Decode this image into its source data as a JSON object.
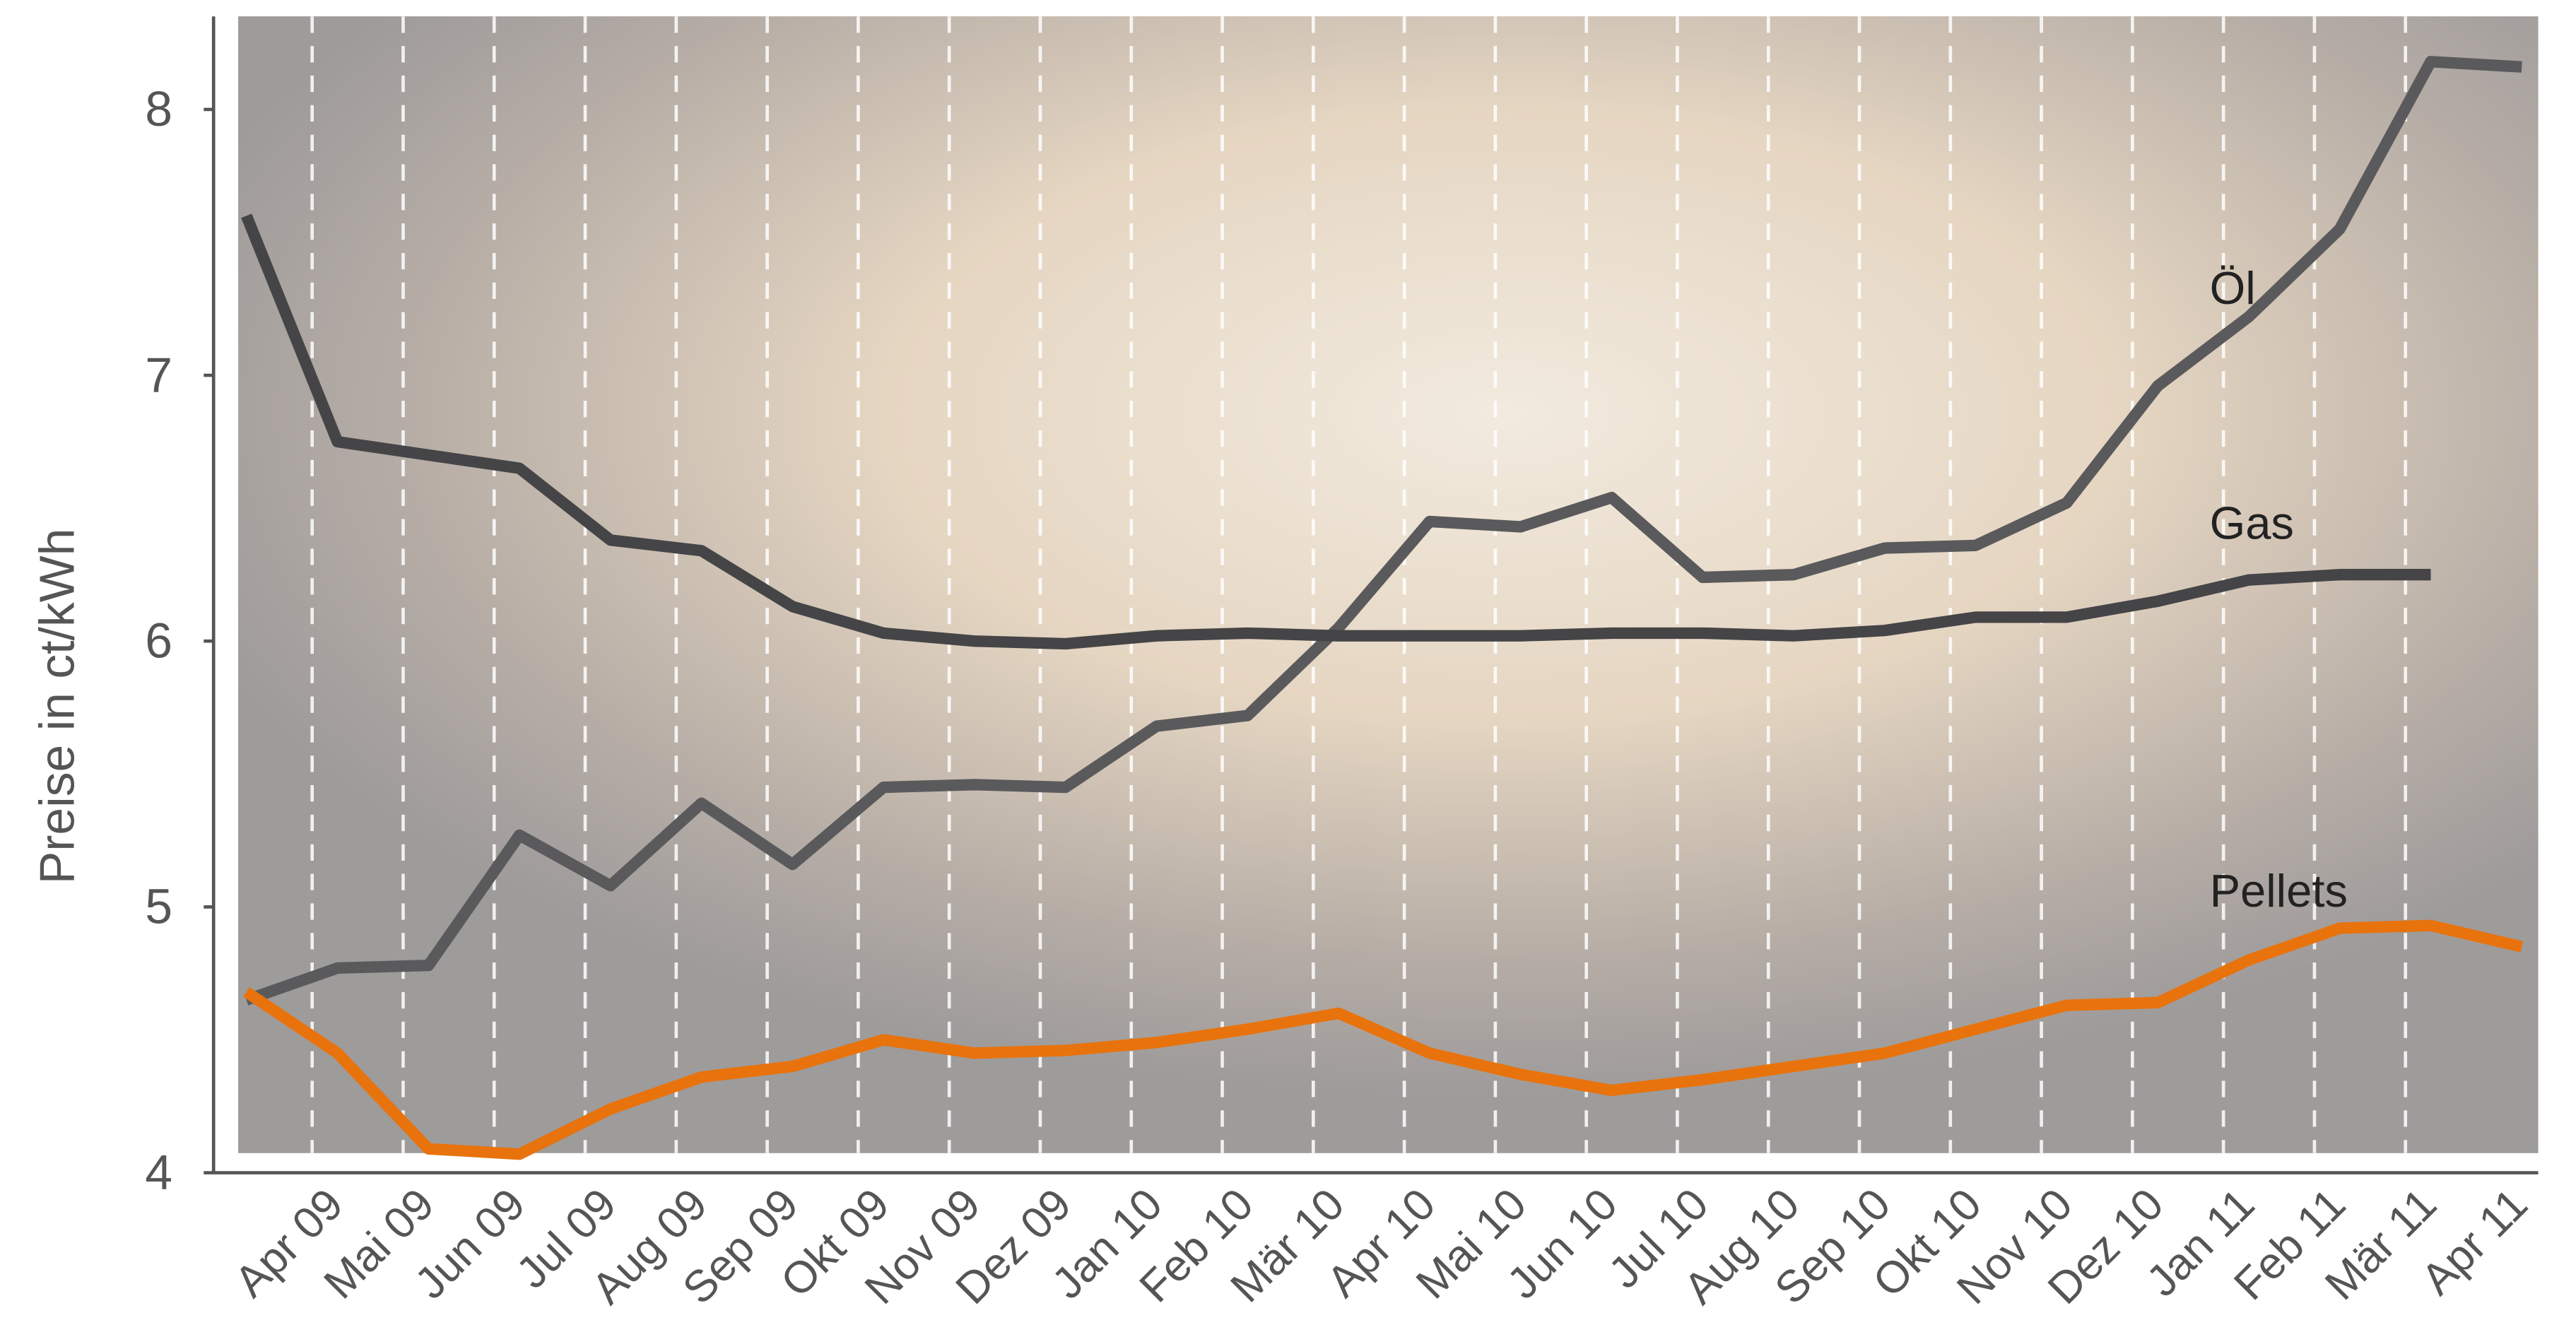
{
  "chart_data": {
    "type": "line",
    "y_label": "Preise in ct/kWh",
    "categories": [
      null,
      "Apr 09",
      "Mai 09",
      "Jun 09",
      "Jul 09",
      "Aug 09",
      "Sep 09",
      "Okt 09",
      "Nov 09",
      "Dez 09",
      "Jan 10",
      "Feb 10",
      "Mär 10",
      "Apr 10",
      "Mai 10",
      "Jun 10",
      "Jul 10",
      "Aug 10",
      "Sep 10",
      "Okt 10",
      "Nov 10",
      "Dez 10",
      "Jan 11",
      "Feb 11",
      "Mär 11",
      "Apr 11"
    ],
    "series": [
      {
        "name": "Öl",
        "color": "#5a5a5c",
        "values": [
          4.65,
          4.77,
          4.78,
          5.27,
          5.08,
          5.39,
          5.16,
          5.45,
          5.46,
          5.45,
          5.68,
          5.72,
          6.05,
          6.45,
          6.43,
          6.54,
          6.24,
          6.25,
          6.35,
          6.36,
          6.52,
          6.96,
          7.22,
          7.55,
          8.18,
          8.16
        ]
      },
      {
        "name": "Gas",
        "color": "#454547",
        "values": [
          7.6,
          6.75,
          6.7,
          6.65,
          6.38,
          6.34,
          6.13,
          6.03,
          6.0,
          5.99,
          6.02,
          6.03,
          6.02,
          6.02,
          6.02,
          6.03,
          6.03,
          6.02,
          6.04,
          6.09,
          6.09,
          6.15,
          6.23,
          6.25,
          6.25,
          null
        ]
      },
      {
        "name": "Pellets",
        "color": "#e8730c",
        "values": [
          4.68,
          4.45,
          4.09,
          4.07,
          4.24,
          4.36,
          4.4,
          4.5,
          4.45,
          4.46,
          4.49,
          4.54,
          4.6,
          4.45,
          4.37,
          4.31,
          4.35,
          4.4,
          4.45,
          4.54,
          4.63,
          4.64,
          4.8,
          4.92,
          4.93,
          4.85
        ]
      }
    ],
    "ylim": [
      4,
      8.35
    ],
    "yticks": [
      4,
      5,
      6,
      7,
      8
    ]
  }
}
